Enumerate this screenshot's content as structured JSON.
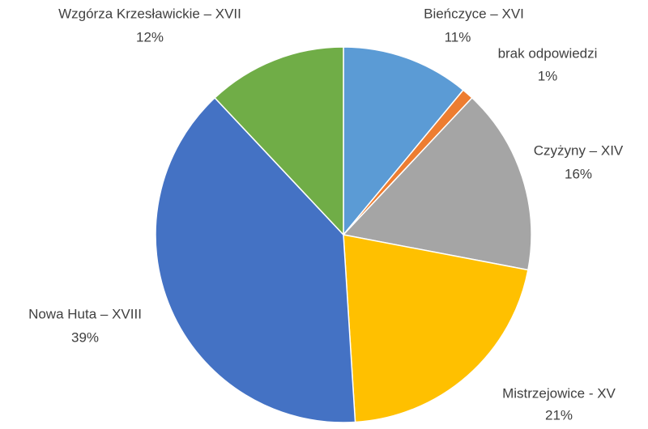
{
  "chart_data": {
    "type": "pie",
    "categories": [
      "Bieńczyce – XVI",
      "brak odpowiedzi",
      "Czyżyny – XIV",
      "Mistrzejowice - XV",
      "Nowa Huta – XVIII",
      "Wzgórza Krzesławickie – XVII"
    ],
    "values": [
      11,
      1,
      16,
      21,
      39,
      12
    ],
    "value_labels": [
      "11%",
      "1%",
      "16%",
      "21%",
      "39%",
      "12%"
    ],
    "colors": [
      "#5b9bd5",
      "#ed7d31",
      "#a5a5a5",
      "#ffc000",
      "#4472c4",
      "#70ad47"
    ]
  }
}
